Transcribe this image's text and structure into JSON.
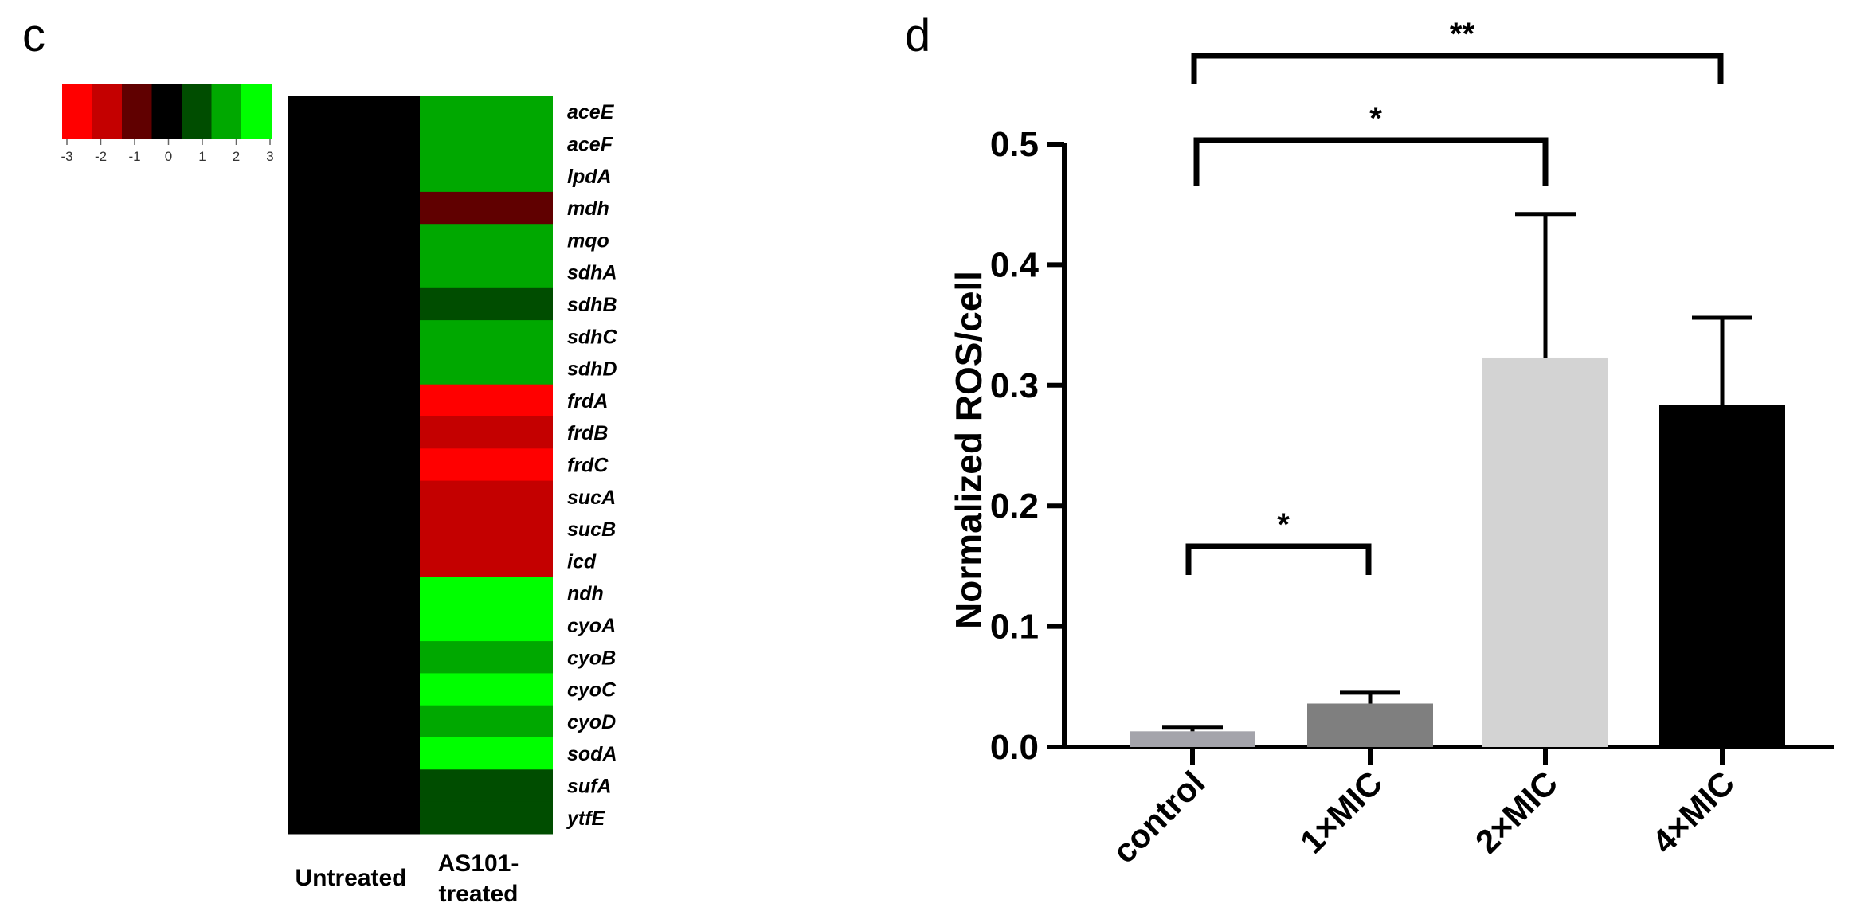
{
  "chart_data": [
    {
      "panel": "c",
      "type": "heatmap",
      "color_scale": {
        "ticks": [
          "-3",
          "-2",
          "-1",
          "0",
          "1",
          "2",
          "3"
        ],
        "colors": [
          "#ff0000",
          "#c40000",
          "#600000",
          "#000000",
          "#004d00",
          "#00a800",
          "#00ff00"
        ]
      },
      "columns": [
        "Untreated",
        "AS101-\ntreated"
      ],
      "genes": [
        "aceE",
        "aceF",
        "lpdA",
        "mdh",
        "mqo",
        "sdhA",
        "sdhB",
        "sdhC",
        "sdhD",
        "frdA",
        "frdB",
        "frdC",
        "sucA",
        "sucB",
        "icd",
        "ndh",
        "cyoA",
        "cyoB",
        "cyoC",
        "cyoD",
        "sodA",
        "sufA",
        "ytfE"
      ],
      "untreated_values": [
        0,
        0,
        0,
        0,
        0,
        0,
        0,
        0,
        0,
        0,
        0,
        0,
        0,
        0,
        0,
        0,
        0,
        0,
        0,
        0,
        0,
        0,
        0
      ],
      "treated_values": [
        2,
        2,
        2,
        -1,
        2,
        2,
        1,
        2,
        2,
        -3,
        -2,
        -3,
        -2,
        -2,
        -2,
        3,
        3,
        2,
        3,
        2,
        3,
        1,
        1
      ]
    },
    {
      "panel": "d",
      "type": "bar",
      "categories": [
        "control",
        "1×MIC",
        "2×MIC",
        "4×MIC"
      ],
      "values": [
        0.013,
        0.036,
        0.323,
        0.284
      ],
      "errors": [
        0.003,
        0.009,
        0.119,
        0.072
      ],
      "bar_colors": [
        "#a4a4ab",
        "#7f7f7f",
        "#d3d3d3",
        "#000000"
      ],
      "ylabel": "Normalized ROS/cell",
      "ylim": [
        0,
        0.5
      ],
      "yticks": [
        "0.0",
        "0.1",
        "0.2",
        "0.3",
        "0.4",
        "0.5"
      ],
      "significance": [
        {
          "from": 0,
          "to": 1,
          "label": "*"
        },
        {
          "from": 0,
          "to": 2,
          "label": "*"
        },
        {
          "from": 0,
          "to": 3,
          "label": "**"
        }
      ]
    }
  ]
}
